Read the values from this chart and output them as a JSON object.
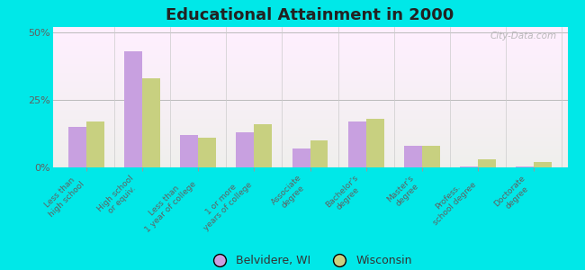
{
  "title": "Educational Attainment in 2000",
  "categories": [
    "Less than\nhigh school",
    "High school\nor equiv.",
    "Less than\n1 year of college",
    "1 or more\nyears of college",
    "Associate\ndegree",
    "Bachelor's\ndegree",
    "Master's\ndegree",
    "Profess.\nschool degree",
    "Doctorate\ndegree"
  ],
  "belvidere": [
    15,
    43,
    12,
    13,
    7,
    17,
    8,
    0.5,
    0.5
  ],
  "wisconsin": [
    17,
    33,
    11,
    16,
    10,
    18,
    8,
    3,
    2
  ],
  "color_belvidere": "#c8a0e0",
  "color_wisconsin": "#c8d080",
  "background_outer": "#00e8e8",
  "ylim": [
    0,
    52
  ],
  "yticks": [
    0,
    25,
    50
  ],
  "ytick_labels": [
    "0%",
    "25%",
    "50%"
  ],
  "legend_belvidere": "Belvidere, WI",
  "legend_wisconsin": "Wisconsin",
  "watermark": "City-Data.com",
  "bar_width": 0.32
}
